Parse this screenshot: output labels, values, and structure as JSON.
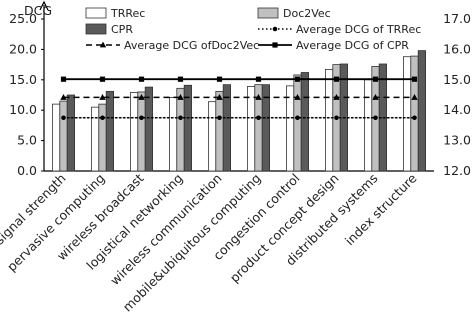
{
  "chart_data": {
    "type": "bar",
    "title": "",
    "ylabel": "DCG",
    "ylim": [
      0,
      25
    ],
    "yticks": [
      "0.0",
      "5.0",
      "10.0",
      "15.0",
      "20.0",
      "25.0"
    ],
    "y2lim": [
      12,
      17
    ],
    "y2ticks": [
      "12.0",
      "13.0",
      "14.0",
      "15.0",
      "16.0",
      "17.0"
    ],
    "grid": false,
    "legend_position": "top",
    "categories": [
      "signal strength",
      "pervasive computing",
      "wireless broadcast",
      "logistical networking",
      "wireless communication",
      "mobile&ubiquitous computing",
      "congestion control",
      "product concept design",
      "distributed systems",
      "index structure"
    ],
    "series": [
      {
        "name": "TRRec",
        "type": "bar",
        "color": "#ffffff",
        "values": [
          11.0,
          10.5,
          12.9,
          12.1,
          11.4,
          13.9,
          14.0,
          16.7,
          15.0,
          18.8
        ]
      },
      {
        "name": "Doc2Vec",
        "type": "bar",
        "color": "#c0c0c0",
        "values": [
          11.5,
          11.0,
          13.0,
          13.6,
          13.1,
          14.2,
          15.8,
          17.5,
          17.2,
          18.9
        ]
      },
      {
        "name": "CPR",
        "type": "bar",
        "color": "#5a5a5a",
        "values": [
          12.5,
          13.1,
          13.8,
          14.1,
          14.2,
          14.2,
          16.2,
          17.6,
          17.6,
          19.8
        ]
      },
      {
        "name": "Average DCG of TRRec",
        "type": "line",
        "axis": "right",
        "style": "dotted",
        "marker": "circle",
        "values": [
          13.75,
          13.75,
          13.75,
          13.75,
          13.75,
          13.75,
          13.75,
          13.75,
          13.75,
          13.75
        ]
      },
      {
        "name": "Average DCG ofDoc2Vec",
        "type": "line",
        "axis": "right",
        "style": "dashed",
        "marker": "triangle",
        "values": [
          14.42,
          14.42,
          14.42,
          14.42,
          14.42,
          14.42,
          14.42,
          14.42,
          14.42,
          14.42
        ]
      },
      {
        "name": "Average DCG of CPR",
        "type": "line",
        "axis": "right",
        "style": "solid",
        "marker": "square",
        "values": [
          15.02,
          15.02,
          15.02,
          15.02,
          15.02,
          15.02,
          15.02,
          15.02,
          15.02,
          15.02
        ]
      }
    ]
  },
  "colors": {
    "axis": "#000000",
    "bar_outline": "#333333"
  }
}
